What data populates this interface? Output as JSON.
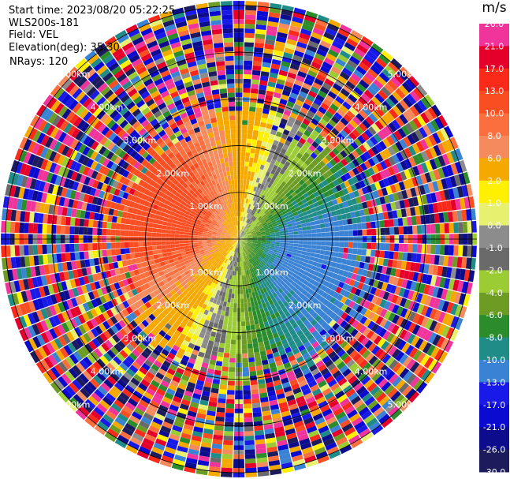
{
  "header": {
    "start_time": "Start time: 2023/08/20 05:22:25",
    "site": "WLS200s-181",
    "field": "Field: VEL",
    "elevation": "Elevation(deg): 35.30",
    "nrays": "NRays: 120"
  },
  "chart_data": {
    "type": "heatmap",
    "projection": "polar-ppi",
    "range_ring_labels": [
      "1.00km",
      "2.00km",
      "3.00km",
      "4.00km",
      "5.00km"
    ],
    "range_rings_km": [
      1,
      2,
      3,
      4,
      5
    ],
    "max_range_km": 5.1,
    "colorbar": {
      "unit": "m/s",
      "tick_labels": [
        "26.0",
        "21.0",
        "17.0",
        "13.0",
        "10.0",
        "8.0",
        "6.0",
        "2.0",
        "1.0",
        "0.0",
        "-1.0",
        "-2.0",
        "-4.0",
        "-6.0",
        "-8.0",
        "-10.0",
        "-13.0",
        "-17.0",
        "-21.0",
        "-26.0",
        "-30.0"
      ],
      "colors": [
        "#f0349c",
        "#e4002a",
        "#f92a1a",
        "#f94d22",
        "#fb6e3e",
        "#f58a5c",
        "#f5a800",
        "#fff000",
        "#e8f070",
        "#8c8c8c",
        "#6a6a6a",
        "#9ccc34",
        "#6c9c24",
        "#2a8c2a",
        "#208c88",
        "#3a82d4",
        "#1a1ae8",
        "#0a0ad0",
        "#0c0c8c",
        "#1c1c5c"
      ]
    },
    "wind_field": {
      "flow_toward_bearing_deg": 110,
      "max_speed_ms": 12,
      "clean_range_km": 2.2,
      "noisy_range_km": 5.1
    }
  }
}
